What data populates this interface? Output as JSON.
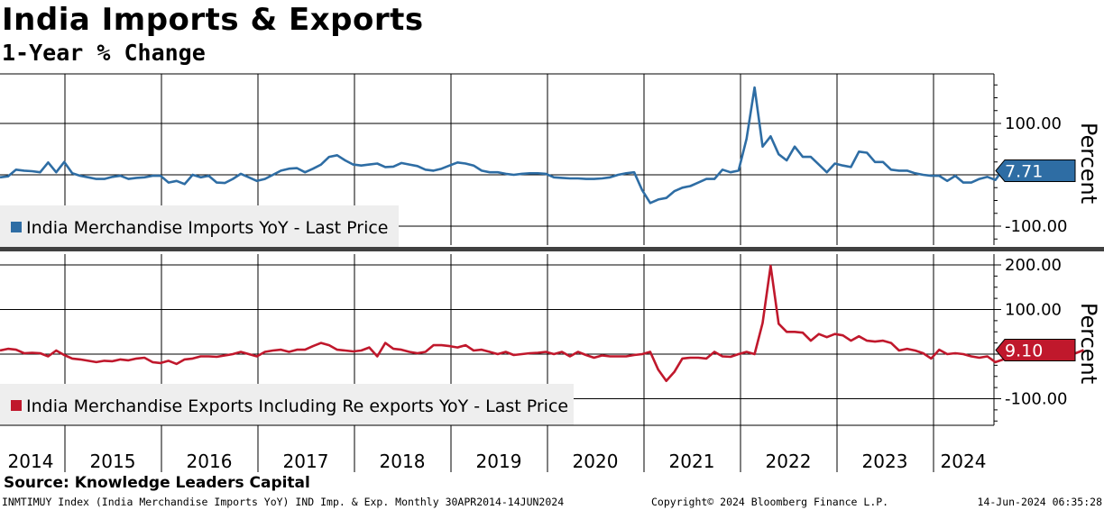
{
  "title": "India Imports & Exports",
  "subtitle": "1-Year % Change",
  "source": "Source: Knowledge Leaders Capital",
  "footer": {
    "left": "INMTIMUY Index (India Merchandise Imports YoY) IND Imp. & Exp.  Monthly 30APR2014-14JUN2024",
    "center": "Copyright© 2024 Bloomberg Finance L.P.",
    "right": "14-Jun-2024 06:35:28"
  },
  "x_axis": {
    "labels": [
      "2014",
      "2015",
      "2016",
      "2017",
      "2018",
      "2019",
      "2020",
      "2021",
      "2022",
      "2023",
      "2024"
    ]
  },
  "colors": {
    "imports": "#2e6da4",
    "exports": "#c0182c"
  },
  "chart_data": [
    {
      "type": "line",
      "ylabel": "Percent",
      "yticks": [
        100,
        -100
      ],
      "ytick_labels": [
        "100.00",
        "-100.00"
      ],
      "ylim": [
        -120,
        195
      ],
      "x_start": "2014-04",
      "frequency": "monthly",
      "series": [
        {
          "name": "India Merchandise Imports YoY - Last Price",
          "last_value_label": "7.71",
          "values": [
            -5,
            -3,
            10,
            8,
            7,
            5,
            24,
            5,
            25,
            3,
            -2,
            -5,
            -8,
            -8,
            -4,
            -2,
            -8,
            -6,
            -5,
            -2,
            -2,
            -15,
            -12,
            -18,
            0,
            -5,
            -2,
            -15,
            -16,
            -8,
            2,
            -5,
            -12,
            -8,
            0,
            8,
            12,
            13,
            5,
            12,
            20,
            35,
            38,
            28,
            20,
            18,
            20,
            22,
            15,
            16,
            23,
            20,
            17,
            10,
            8,
            12,
            18,
            24,
            22,
            18,
            8,
            5,
            5,
            2,
            0,
            2,
            3,
            3,
            2,
            -5,
            -6,
            -7,
            -7,
            -8,
            -8,
            -7,
            -5,
            0,
            3,
            5,
            -30,
            -55,
            -48,
            -45,
            -32,
            -25,
            -22,
            -15,
            -8,
            -8,
            10,
            5,
            8,
            70,
            170,
            55,
            75,
            40,
            28,
            55,
            35,
            35,
            20,
            5,
            22,
            18,
            15,
            45,
            43,
            25,
            25,
            10,
            8,
            8,
            3,
            0,
            -2,
            -2,
            -12,
            -2,
            -15,
            -15,
            -8,
            -4,
            -10,
            12,
            2,
            2,
            8,
            15,
            -2,
            12,
            8
          ]
        }
      ]
    },
    {
      "type": "line",
      "ylabel": "Percent",
      "yticks": [
        200,
        100,
        -100
      ],
      "ytick_labels": [
        "200.00",
        "100.00",
        "-100.00"
      ],
      "ylim": [
        -160,
        210
      ],
      "x_start": "2014-04",
      "frequency": "monthly",
      "series": [
        {
          "name": "India Merchandise Exports Including Re exports YoY - Last Price",
          "last_value_label": "9.10",
          "values": [
            8,
            12,
            10,
            2,
            3,
            2,
            -5,
            8,
            -2,
            -10,
            -12,
            -15,
            -18,
            -15,
            -16,
            -12,
            -14,
            -10,
            -8,
            -18,
            -20,
            -15,
            -22,
            -12,
            -10,
            -5,
            -5,
            -6,
            -3,
            0,
            5,
            0,
            -5,
            5,
            8,
            10,
            5,
            10,
            10,
            18,
            25,
            20,
            10,
            8,
            6,
            8,
            15,
            -5,
            25,
            12,
            10,
            5,
            2,
            5,
            20,
            20,
            18,
            15,
            20,
            8,
            10,
            5,
            0,
            5,
            -2,
            0,
            2,
            3,
            5,
            0,
            5,
            -5,
            5,
            -2,
            -8,
            -3,
            -5,
            -5,
            -5,
            -2,
            0,
            5,
            -35,
            -60,
            -40,
            -10,
            -8,
            -8,
            -10,
            5,
            -5,
            -6,
            0,
            5,
            0,
            70,
            198,
            68,
            50,
            50,
            48,
            30,
            45,
            38,
            45,
            42,
            30,
            40,
            30,
            28,
            30,
            25,
            8,
            12,
            8,
            2,
            -10,
            10,
            0,
            2,
            0,
            -5,
            -8,
            -5,
            -18,
            -12,
            -8,
            -5,
            5,
            -5,
            0,
            2,
            12,
            0,
            2,
            9
          ]
        }
      ]
    }
  ]
}
